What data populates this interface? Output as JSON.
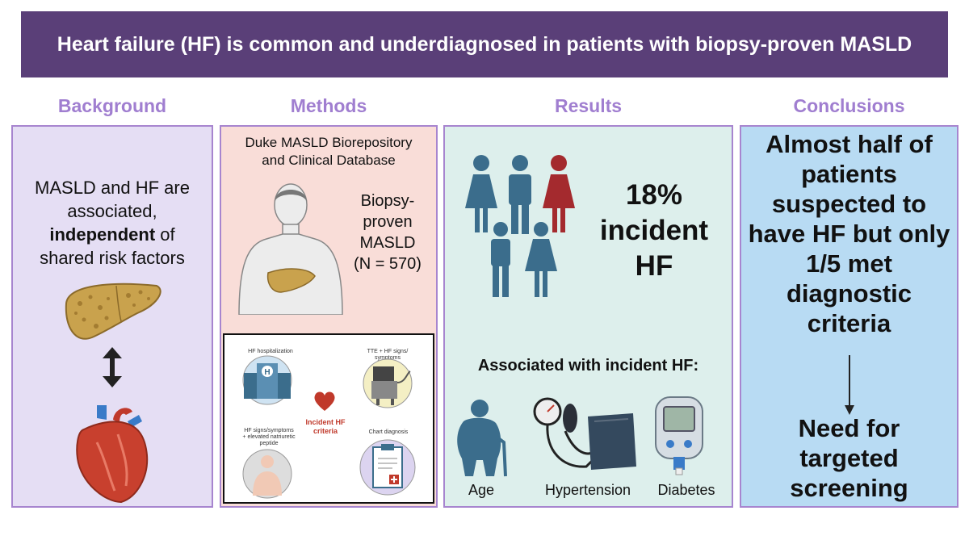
{
  "banner": {
    "title": "Heart failure (HF) is common and underdiagnosed in patients with biopsy-proven MASLD"
  },
  "sections": {
    "background": "Background",
    "methods": "Methods",
    "results": "Results",
    "conclusions": "Conclusions"
  },
  "background": {
    "line1": "MASLD and HF are",
    "line2": "associated,",
    "bold_word": "independent",
    "after_bold": " of",
    "line4": "shared risk factors"
  },
  "methods": {
    "database_line1": "Duke MASLD Biorepository",
    "database_line2": "and Clinical Database",
    "cohort_line1": "Biopsy-",
    "cohort_line2": "proven",
    "cohort_line3": "MASLD",
    "cohort_line4": "(N = 570)",
    "criteria": {
      "hospitalization": "HF hospitalization",
      "tte_line1": "TTE + HF signs/",
      "tte_line2": "symptoms",
      "signs_line1": "HF signs/symptoms",
      "signs_line2": "+ elevated natriuretic",
      "signs_line3": "peptide",
      "chart": "Chart diagnosis",
      "center_line1": "Incident HF",
      "center_line2": "criteria"
    }
  },
  "results": {
    "stat_line1": "18%",
    "stat_line2": "incident",
    "stat_line3": "HF",
    "assoc_heading": "Associated with incident HF:",
    "factors": [
      "Age",
      "Hypertension",
      "Diabetes"
    ]
  },
  "conclusions": {
    "lines": [
      "Almost half of",
      "patients",
      "suspected to",
      "have HF but only",
      "1/5 met",
      "diagnostic",
      "criteria"
    ],
    "need_lines": [
      "Need for",
      "targeted",
      "screening"
    ]
  },
  "colors": {
    "banner": "#5a3f78",
    "section_title": "#a07ed0",
    "panel_border": "#a785cf",
    "people_blue": "#3b6d8c",
    "people_red": "#a42a2e"
  }
}
